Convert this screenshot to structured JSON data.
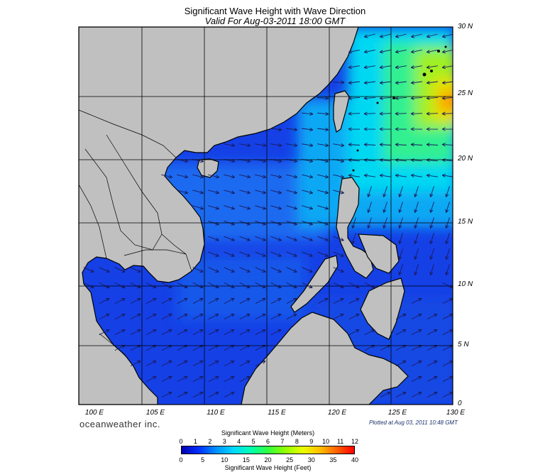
{
  "title": "Significant Wave Height with Wave Direction",
  "subtitle": "Valid For Aug-03-2011 18:00 GMT",
  "lat_labels": [
    "30 N",
    "25 N",
    "20 N",
    "15 N",
    "10 N",
    "5 N",
    "0"
  ],
  "lon_labels": [
    "100 E",
    "105 E",
    "110 E",
    "115 E",
    "120 E",
    "125 E",
    "130 E"
  ],
  "brand": "oceanweather inc.",
  "plotted": "Plotted at Aug 03, 2011 10:48 GMT",
  "colorbar": {
    "meters_label": "Significant Wave Height (Meters)",
    "feet_label": "Significant Wave Height (Feet)",
    "meters_ticks": [
      "0",
      "1",
      "2",
      "3",
      "4",
      "5",
      "6",
      "7",
      "8",
      "9",
      "10",
      "11",
      "12"
    ],
    "feet_ticks": [
      "0",
      "5",
      "10",
      "15",
      "20",
      "25",
      "30",
      "35",
      "40"
    ],
    "colors": [
      "#0000b0",
      "#0030ff",
      "#0090ff",
      "#00d8ff",
      "#00ffb0",
      "#30ff40",
      "#90ff00",
      "#e8ff00",
      "#ffc000",
      "#ff6000",
      "#ff0000"
    ]
  },
  "colors": {
    "land": "#c0c0c0",
    "deep_sea": "#1038e0",
    "arrow": "#1a1a5a"
  }
}
